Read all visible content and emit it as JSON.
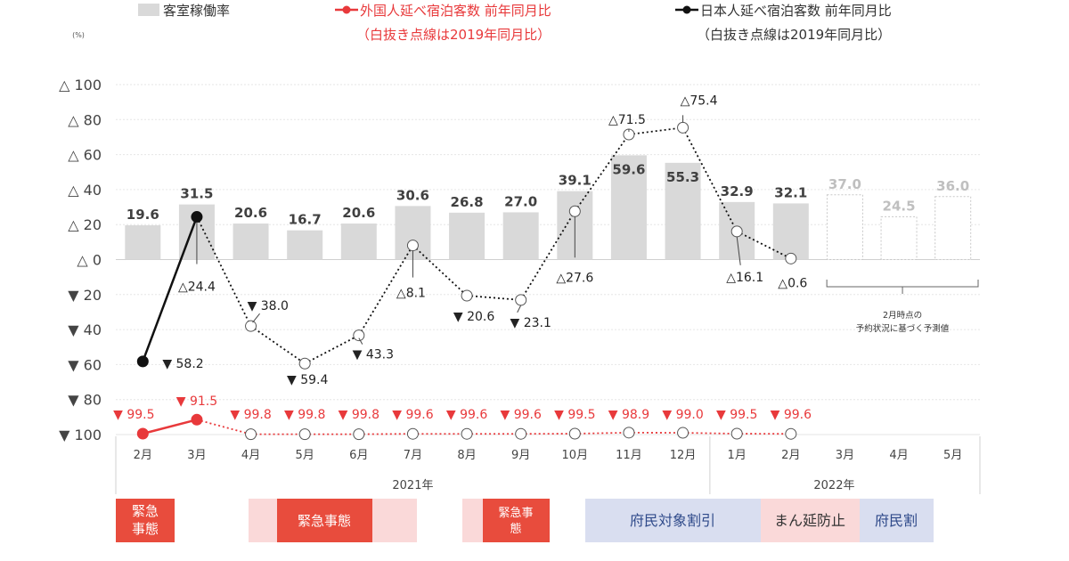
{
  "chart_data": {
    "type": "bar+line",
    "y_unit": "(%)",
    "ylim": [
      -100,
      100
    ],
    "y_ticks": [
      {
        "value": 100,
        "label": "△ 100"
      },
      {
        "value": 80,
        "label": "△ 80"
      },
      {
        "value": 60,
        "label": "△ 60"
      },
      {
        "value": 40,
        "label": "△ 40"
      },
      {
        "value": 20,
        "label": "△ 20"
      },
      {
        "value": 0,
        "label": "△ 0"
      },
      {
        "value": -20,
        "label": "▼ 20"
      },
      {
        "value": -40,
        "label": "▼ 40"
      },
      {
        "value": -60,
        "label": "▼ 60"
      },
      {
        "value": -80,
        "label": "▼ 80"
      },
      {
        "value": -100,
        "label": "▼ 100"
      }
    ],
    "categories": [
      "2月",
      "3月",
      "4月",
      "5月",
      "6月",
      "7月",
      "8月",
      "9月",
      "10月",
      "11月",
      "12月",
      "1月",
      "2月",
      "3月",
      "4月",
      "5月"
    ],
    "year_groups": [
      {
        "label": "2021年",
        "from": 0,
        "to": 10
      },
      {
        "label": "2022年",
        "from": 11,
        "to": 15
      }
    ],
    "legend": {
      "occupancy": "客室稼働率",
      "foreign_line1": "外国人延べ宿泊客数  前年同月比",
      "foreign_line2": "（白抜き点線は2019年同月比）",
      "japanese_line1": "日本人延べ宿泊客数  前年同月比",
      "japanese_line2": "（白抜き点線は2019年同月比）"
    },
    "occupancy": {
      "name": "客室稼働率",
      "values": [
        19.6,
        31.5,
        20.6,
        16.7,
        20.6,
        30.6,
        26.8,
        27.0,
        39.1,
        59.6,
        55.3,
        32.9,
        32.1,
        37.0,
        24.5,
        36.0
      ],
      "labels": [
        "19.6",
        "31.5",
        "20.6",
        "16.7",
        "20.6",
        "30.6",
        "26.8",
        "27.0",
        "39.1",
        "59.6",
        "55.3",
        "32.9",
        "32.1",
        "37.0",
        "24.5",
        "36.0"
      ],
      "forecast_from_index": 13
    },
    "japanese": {
      "name": "日本人延べ宿泊客数 前年同月比",
      "values": [
        -58.2,
        24.4,
        -38.0,
        -59.4,
        -43.3,
        8.1,
        -20.6,
        -23.1,
        27.6,
        71.5,
        75.4,
        16.1,
        0.6
      ],
      "labels": [
        "▼ 58.2",
        "△24.4",
        "▼ 38.0",
        "▼ 59.4",
        "▼ 43.3",
        "△8.1",
        "▼ 20.6",
        "▼ 23.1",
        "△27.6",
        "△71.5",
        "△75.4",
        "△16.1",
        "△0.6"
      ],
      "solid_until_index": 1
    },
    "foreign": {
      "name": "外国人延べ宿泊客数 前年同月比",
      "values": [
        -99.5,
        -91.5,
        -99.8,
        -99.8,
        -99.8,
        -99.6,
        -99.6,
        -99.6,
        -99.5,
        -98.9,
        -99.0,
        -99.5,
        -99.6
      ],
      "labels": [
        "▼ 99.5",
        "▼ 91.5",
        "▼ 99.8",
        "▼ 99.8",
        "▼ 99.8",
        "▼ 99.6",
        "▼ 99.6",
        "▼ 99.6",
        "▼ 99.5",
        "▼ 98.9",
        "▼ 99.0",
        "▼ 99.5",
        "▼ 99.6"
      ],
      "solid_until_index": 1
    },
    "forecast_note": [
      "2月時点の",
      "予約状況に基づく予測値"
    ],
    "policy_periods": [
      {
        "label": "緊急事態",
        "lines": [
          "緊急",
          "事態"
        ],
        "kind": "emergency"
      },
      {
        "label": "緊急事態",
        "lines": [
          "緊急事態"
        ],
        "kind": "emergency"
      },
      {
        "label": "緊急事態",
        "lines": [
          "緊急事",
          "態"
        ],
        "kind": "emergency"
      },
      {
        "label": "府民対象割引",
        "lines": [
          "府民対象割引"
        ],
        "kind": "campaign"
      },
      {
        "label": "まん延防止",
        "lines": [
          "まん延防止"
        ],
        "kind": "prevention"
      },
      {
        "label": "府民割",
        "lines": [
          "府民割"
        ],
        "kind": "campaign"
      }
    ],
    "colors": {
      "bar": "#d9d9d9",
      "bar_label": "#404040",
      "forecast_label": "#bfbfbf",
      "foreign": "#e8393b",
      "japanese": "#111111",
      "emergency": "#e84c3d",
      "emergency_light": "#fad9d9",
      "campaign": "#d9def0",
      "campaign_text": "#2f4a8a",
      "prevention": "#fad9d9",
      "prevention_text": "#333333"
    }
  }
}
